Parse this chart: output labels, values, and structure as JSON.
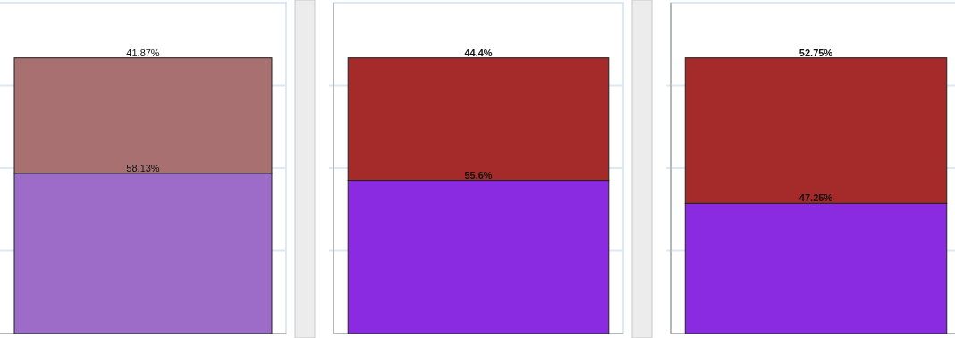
{
  "chart_data": [
    {
      "type": "bar",
      "stacked": true,
      "categories": [
        null
      ],
      "ylim": [
        0,
        120
      ],
      "yticks": [
        {
          "value": 30,
          "label": null
        },
        {
          "value": 60,
          "label": null
        },
        {
          "value": 90,
          "label": null
        }
      ],
      "grid": "y",
      "data_labels": true,
      "series": [
        {
          "color": "#9c6cc8",
          "values": [
            58.13
          ],
          "value_labels": [
            "58.13%"
          ]
        },
        {
          "color": "#a87070",
          "values": [
            41.87
          ],
          "value_labels": [
            "41.87%"
          ]
        }
      ]
    },
    {
      "type": "bar",
      "stacked": true,
      "categories": [
        null
      ],
      "ylim": [
        0,
        120
      ],
      "yticks": [
        {
          "value": 30,
          "label": null
        },
        {
          "value": 60,
          "label": null
        },
        {
          "value": 90,
          "label": null
        }
      ],
      "grid": "y",
      "data_labels": true,
      "series": [
        {
          "color": "#8a2be2",
          "values": [
            55.6
          ],
          "value_labels": [
            "55.6%"
          ]
        },
        {
          "color": "#a52a2a",
          "values": [
            44.4
          ],
          "value_labels": [
            "44.4%"
          ]
        }
      ]
    },
    {
      "type": "bar",
      "stacked": true,
      "categories": [
        null
      ],
      "ylim": [
        0,
        120
      ],
      "yticks": [
        {
          "value": 30,
          "label": null
        },
        {
          "value": 60,
          "label": null
        },
        {
          "value": 90,
          "label": null
        }
      ],
      "grid": "y",
      "data_labels": true,
      "series": [
        {
          "color": "#8a2be2",
          "values": [
            47.25
          ],
          "value_labels": [
            "47.25%"
          ]
        },
        {
          "color": "#a52a2a",
          "values": [
            52.75
          ],
          "value_labels": [
            "52.75%"
          ]
        }
      ]
    }
  ]
}
